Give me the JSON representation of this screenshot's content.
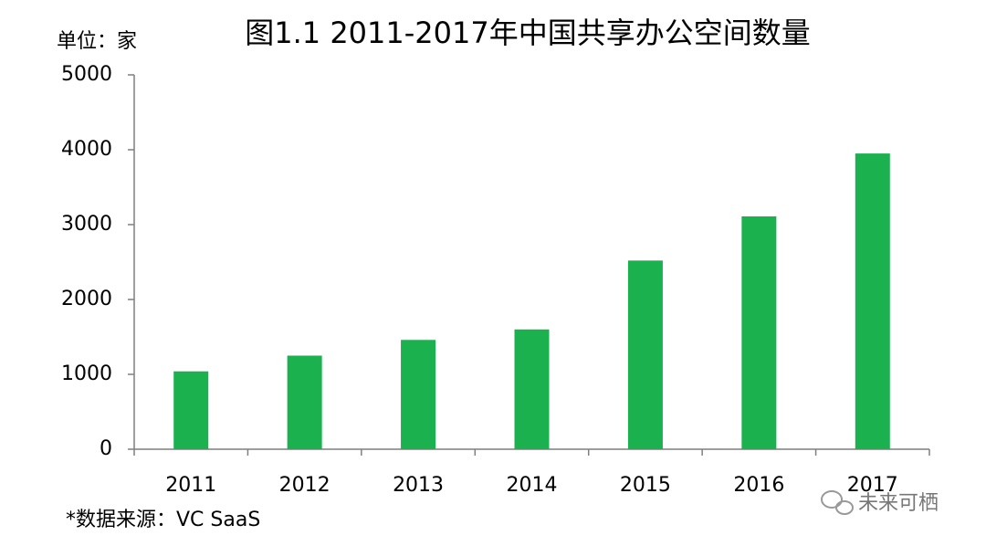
{
  "chart_data": {
    "type": "bar",
    "title": "图1.1 2011-2017年中国共享办公空间数量",
    "unit_label": "单位：家",
    "source": "*数据来源：VC SaaS",
    "watermark": "未来可栖",
    "categories": [
      "2011",
      "2012",
      "2013",
      "2014",
      "2015",
      "2016",
      "2017"
    ],
    "values": [
      1040,
      1250,
      1460,
      1600,
      2520,
      3110,
      3950
    ],
    "color": "#1bb14f",
    "ylim": [
      0,
      5000
    ],
    "yticks": [
      0,
      1000,
      2000,
      3000,
      4000,
      5000
    ],
    "grid": false
  }
}
